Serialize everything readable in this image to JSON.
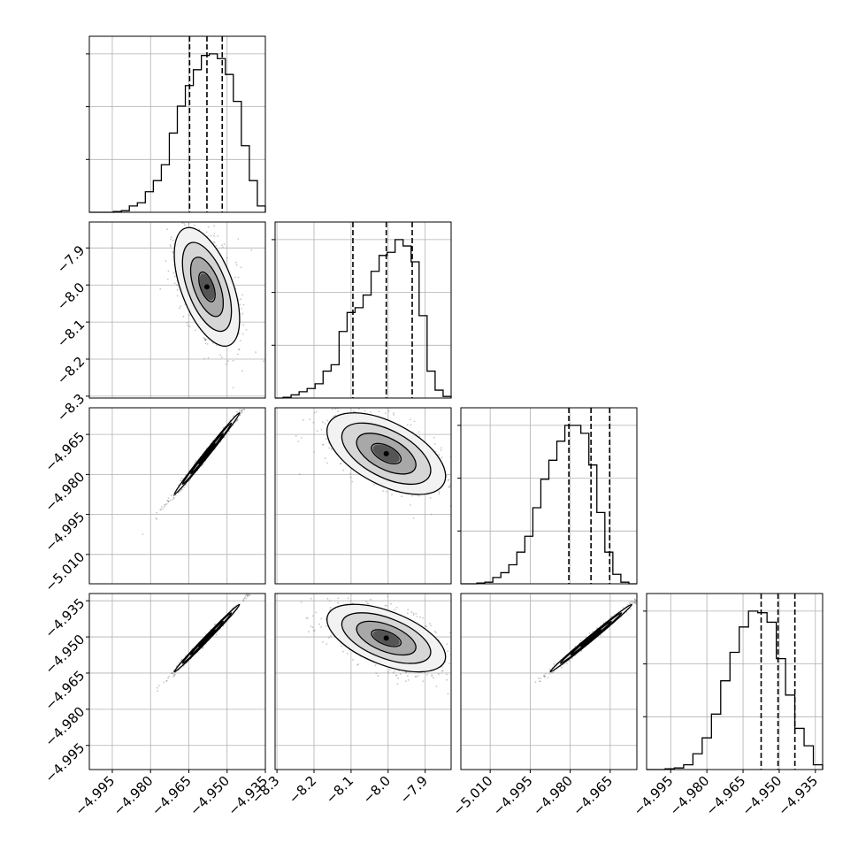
{
  "chart_data": {
    "type": "corner",
    "n_params": 4,
    "grid": true,
    "params": [
      {
        "ticks": [
          -4.995,
          -4.98,
          -4.965,
          -4.95,
          -4.935
        ],
        "tick_labels": [
          "−4.995",
          "−4.980",
          "−4.965",
          "−4.950",
          "−4.935"
        ],
        "range": [
          -5.004,
          -4.935
        ],
        "quantiles": [
          -4.9647,
          -4.9579,
          -4.9519
        ]
      },
      {
        "ticks": [
          -8.3,
          -8.2,
          -8.1,
          -8.0,
          -7.9
        ],
        "tick_labels": [
          "−8.3",
          "−8.2",
          "−8.1",
          "−8.0",
          "−7.9"
        ],
        "range": [
          -8.305,
          -7.83
        ],
        "quantiles": [
          -8.095,
          -8.005,
          -7.935
        ]
      },
      {
        "ticks": [
          -5.01,
          -4.995,
          -4.98,
          -4.965
        ],
        "tick_labels": [
          "−5.010",
          "−4.995",
          "−4.980",
          "−4.965"
        ],
        "range": [
          -5.021,
          -4.955
        ],
        "quantiles": [
          -4.9805,
          -4.9722,
          -4.9652
        ]
      },
      {
        "ticks": [
          -4.995,
          -4.98,
          -4.965,
          -4.95,
          -4.935
        ],
        "tick_labels": [
          "−4.995",
          "−4.980",
          "−4.965",
          "−4.950",
          "−4.935"
        ],
        "range": [
          -5.005,
          -4.932
        ],
        "quantiles": [
          -4.9575,
          -4.9505,
          -4.9435
        ]
      }
    ],
    "histograms": [
      [
        0.0,
        0.0,
        0.0,
        0.005,
        0.01,
        0.04,
        0.06,
        0.13,
        0.2,
        0.3,
        0.5,
        0.67,
        0.8,
        0.9,
        0.99,
        1.0,
        0.97,
        0.87,
        0.7,
        0.42,
        0.2,
        0.04
      ],
      [
        0.0,
        0.005,
        0.02,
        0.04,
        0.06,
        0.09,
        0.17,
        0.21,
        0.42,
        0.54,
        0.57,
        0.65,
        0.8,
        0.9,
        0.92,
        1.0,
        0.96,
        0.86,
        0.52,
        0.17,
        0.05,
        0.01
      ],
      [
        0.0,
        0.0,
        0.005,
        0.01,
        0.04,
        0.07,
        0.12,
        0.2,
        0.3,
        0.48,
        0.66,
        0.78,
        0.9,
        1.0,
        1.0,
        0.95,
        0.75,
        0.45,
        0.2,
        0.06,
        0.01,
        0.0
      ],
      [
        0.0,
        0.0,
        0.005,
        0.01,
        0.03,
        0.1,
        0.2,
        0.35,
        0.56,
        0.74,
        0.9,
        1.0,
        0.99,
        0.93,
        0.7,
        0.47,
        0.26,
        0.15,
        0.03
      ]
    ],
    "pairs": [
      {
        "row": 1,
        "col": 0,
        "corr": -0.55
      },
      {
        "row": 2,
        "col": 0,
        "corr": 0.995
      },
      {
        "row": 2,
        "col": 1,
        "corr": -0.55
      },
      {
        "row": 3,
        "col": 0,
        "corr": 0.995
      },
      {
        "row": 3,
        "col": 1,
        "corr": -0.55
      },
      {
        "row": 3,
        "col": 2,
        "corr": 0.995
      }
    ],
    "contour_levels_sigma": [
      0.5,
      1.0,
      1.5,
      2.0
    ]
  }
}
